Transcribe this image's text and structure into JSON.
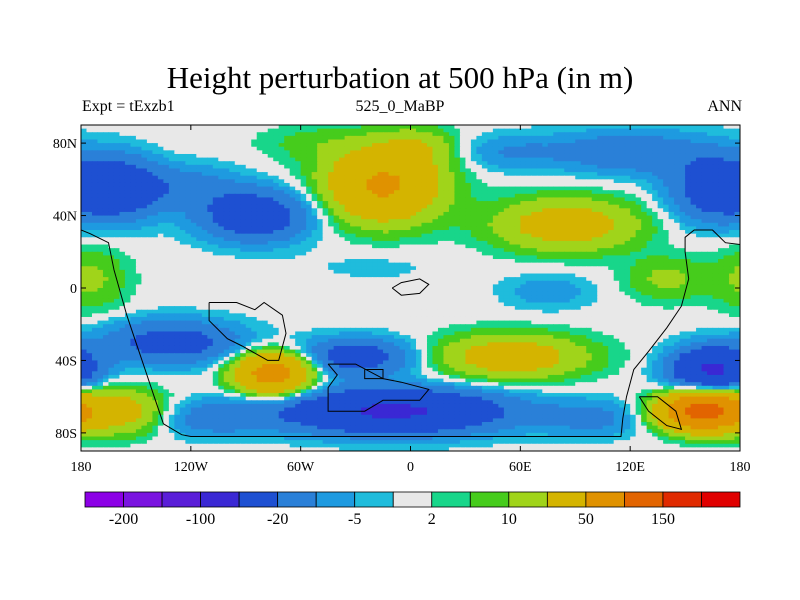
{
  "chart_data": {
    "type": "heatmap",
    "title": "Height perturbation at 500 hPa (in m)",
    "left_string": "Expt = tExzb1",
    "center_string": "525_0_MaBP",
    "right_string": "ANN",
    "x_ticks": [
      {
        "value": -180,
        "label": "180"
      },
      {
        "value": -120,
        "label": "120W"
      },
      {
        "value": -60,
        "label": "60W"
      },
      {
        "value": 0,
        "label": "0"
      },
      {
        "value": 60,
        "label": "60E"
      },
      {
        "value": 120,
        "label": "120E"
      },
      {
        "value": 180,
        "label": "180"
      }
    ],
    "y_ticks": [
      {
        "value": 80,
        "label": "80N"
      },
      {
        "value": 40,
        "label": "40N"
      },
      {
        "value": 0,
        "label": "0"
      },
      {
        "value": -40,
        "label": "40S"
      },
      {
        "value": -80,
        "label": "80S"
      }
    ],
    "xlim": [
      -180,
      180
    ],
    "ylim": [
      -90,
      90
    ],
    "levels": [
      -200,
      -150,
      -100,
      -50,
      -20,
      -10,
      -5,
      -2,
      2,
      5,
      10,
      20,
      50,
      100,
      150,
      200
    ],
    "colorbar_labels": [
      {
        "after_level_index": 0,
        "label": "-200"
      },
      {
        "after_level_index": 2,
        "label": "-100"
      },
      {
        "after_level_index": 4,
        "label": "-20"
      },
      {
        "after_level_index": 6,
        "label": "-5"
      },
      {
        "after_level_index": 8,
        "label": "2"
      },
      {
        "after_level_index": 10,
        "label": "10"
      },
      {
        "after_level_index": 12,
        "label": "50"
      },
      {
        "after_level_index": 14,
        "label": "150"
      }
    ],
    "colors": [
      "#8c00e6",
      "#7a14e0",
      "#5a1ed8",
      "#3a28d4",
      "#1e50d2",
      "#2a80d8",
      "#1e9ae0",
      "#1fbcdc",
      "#e8e8e8",
      "#18d68a",
      "#46cc1c",
      "#a0d41a",
      "#d4b400",
      "#e09200",
      "#e26400",
      "#e02a00",
      "#e00000"
    ],
    "field_features": [
      {
        "lon": -158,
        "lat": 55,
        "amp": -32,
        "dlon": 20,
        "dlat": 17
      },
      {
        "lon": -125,
        "lat": 56,
        "amp": -14,
        "dlon": 30,
        "dlat": 12
      },
      {
        "lon": -85,
        "lat": 40,
        "amp": -34,
        "dlon": 30,
        "dlat": 14
      },
      {
        "lon": -55,
        "lat": 80,
        "amp": 6,
        "dlon": 30,
        "dlat": 10
      },
      {
        "lon": -15,
        "lat": 57,
        "amp": 55,
        "dlon": 30,
        "dlat": 20
      },
      {
        "lon": -20,
        "lat": 12,
        "amp": -3,
        "dlon": 40,
        "dlat": 10
      },
      {
        "lon": 5,
        "lat": 78,
        "amp": 14,
        "dlon": 20,
        "dlat": 10
      },
      {
        "lon": 55,
        "lat": 75,
        "amp": -10,
        "dlon": 30,
        "dlat": 10
      },
      {
        "lon": 120,
        "lat": 75,
        "amp": -18,
        "dlon": 40,
        "dlat": 12
      },
      {
        "lon": 168,
        "lat": 55,
        "amp": -35,
        "dlon": 25,
        "dlat": 18
      },
      {
        "lon": 85,
        "lat": 35,
        "amp": 32,
        "dlon": 38,
        "dlat": 14
      },
      {
        "lon": 75,
        "lat": -2,
        "amp": -8,
        "dlon": 25,
        "dlat": 10
      },
      {
        "lon": 140,
        "lat": 5,
        "amp": 12,
        "dlon": 22,
        "dlat": 12
      },
      {
        "lon": -175,
        "lat": 5,
        "amp": 12,
        "dlon": 20,
        "dlat": 18
      },
      {
        "lon": -130,
        "lat": -30,
        "amp": -28,
        "dlon": 38,
        "dlat": 12
      },
      {
        "lon": -75,
        "lat": -47,
        "amp": 70,
        "dlon": 20,
        "dlat": 11
      },
      {
        "lon": -30,
        "lat": -38,
        "amp": -30,
        "dlon": 32,
        "dlat": 10
      },
      {
        "lon": -10,
        "lat": -68,
        "amp": -55,
        "dlon": 60,
        "dlat": 12
      },
      {
        "lon": -160,
        "lat": -68,
        "amp": 30,
        "dlon": 25,
        "dlat": 12
      },
      {
        "lon": -110,
        "lat": -72,
        "amp": -14,
        "dlon": 30,
        "dlat": 10
      },
      {
        "lon": 55,
        "lat": -38,
        "amp": 32,
        "dlon": 40,
        "dlat": 12
      },
      {
        "lon": 100,
        "lat": -72,
        "amp": -12,
        "dlon": 30,
        "dlat": 10
      },
      {
        "lon": 165,
        "lat": -45,
        "amp": -55,
        "dlon": 22,
        "dlat": 12
      },
      {
        "lon": 160,
        "lat": -68,
        "amp": 120,
        "dlon": 22,
        "dlat": 10
      }
    ],
    "continent_outlines": [
      [
        [
          -180,
          32
        ],
        [
          -175,
          30
        ],
        [
          -165,
          25
        ],
        [
          -162,
          10
        ],
        [
          -155,
          -15
        ],
        [
          -150,
          -30
        ],
        [
          -145,
          -45
        ],
        [
          -140,
          -60
        ],
        [
          -135,
          -75
        ],
        [
          -125,
          -81
        ],
        [
          -120,
          -82
        ],
        [
          0,
          -82
        ],
        [
          115,
          -82
        ],
        [
          116,
          -72
        ],
        [
          118,
          -60
        ],
        [
          122,
          -45
        ],
        [
          130,
          -35
        ],
        [
          140,
          -22
        ],
        [
          148,
          -10
        ],
        [
          152,
          5
        ],
        [
          150,
          20
        ],
        [
          150,
          28
        ],
        [
          155,
          32
        ],
        [
          165,
          32
        ],
        [
          172,
          25
        ],
        [
          180,
          24
        ]
      ],
      [
        [
          -110,
          -8
        ],
        [
          -95,
          -8
        ],
        [
          -85,
          -12
        ],
        [
          -80,
          -8
        ],
        [
          -70,
          -15
        ],
        [
          -68,
          -25
        ],
        [
          -72,
          -40
        ],
        [
          -78,
          -40
        ],
        [
          -92,
          -32
        ],
        [
          -100,
          -28
        ],
        [
          -110,
          -18
        ],
        [
          -110,
          -8
        ]
      ],
      [
        [
          -45,
          -42
        ],
        [
          -30,
          -42
        ],
        [
          -15,
          -50
        ],
        [
          -5,
          -52
        ],
        [
          10,
          -56
        ],
        [
          5,
          -62
        ],
        [
          -15,
          -62
        ],
        [
          -25,
          -68
        ],
        [
          -45,
          -68
        ],
        [
          -45,
          -55
        ],
        [
          -40,
          -48
        ],
        [
          -45,
          -42
        ]
      ],
      [
        [
          -25,
          -45
        ],
        [
          -15,
          -45
        ],
        [
          -15,
          -50
        ],
        [
          -25,
          -50
        ],
        [
          -25,
          -45
        ]
      ],
      [
        [
          -10,
          0
        ],
        [
          -5,
          3
        ],
        [
          5,
          5
        ],
        [
          10,
          2
        ],
        [
          5,
          -3
        ],
        [
          -5,
          -4
        ],
        [
          -10,
          0
        ]
      ],
      [
        [
          125,
          -60
        ],
        [
          135,
          -60
        ],
        [
          145,
          -68
        ],
        [
          148,
          -78
        ],
        [
          140,
          -76
        ],
        [
          130,
          -68
        ],
        [
          125,
          -60
        ]
      ]
    ]
  }
}
